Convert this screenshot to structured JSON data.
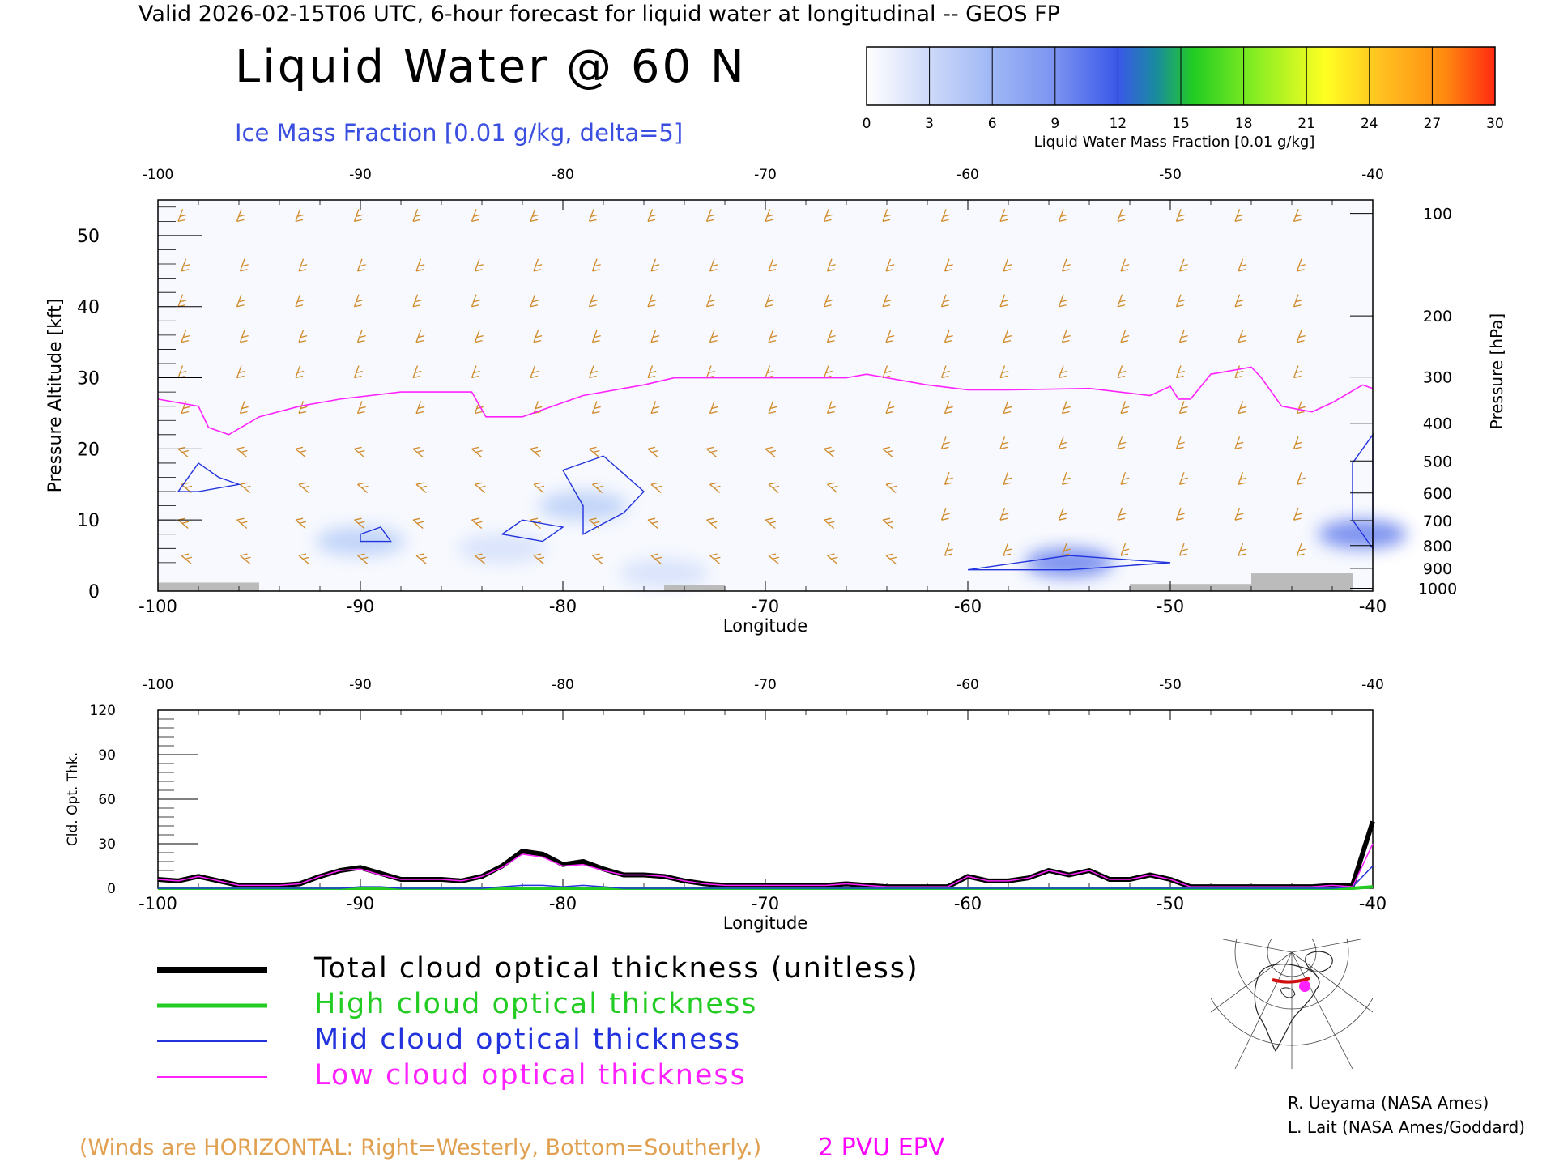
{
  "header": {
    "top_title": "Valid 2026-02-15T06 UTC, 6-hour forecast for liquid water at longitudinal -- GEOS FP",
    "main_title": "Liquid Water @ 60 N",
    "ice_note": "Ice Mass Fraction [0.01 g/kg, delta=5]"
  },
  "colorbar": {
    "ticks": [
      "0",
      "3",
      "6",
      "9",
      "12",
      "15",
      "18",
      "21",
      "24",
      "27",
      "30"
    ],
    "label": "Liquid Water Mass Fraction [0.01 g/kg]",
    "colors": [
      "#f2f5fd",
      "#bcd0f8",
      "#8fa9f3",
      "#6f87ee",
      "#3a55e6",
      "#1a8a9a",
      "#22cc22",
      "#88ee22",
      "#ffff22",
      "#ffc61e",
      "#ff8a10",
      "#ff3010"
    ]
  },
  "legend": {
    "total": "Total cloud optical thickness (unitless)",
    "high": "High cloud optical thickness",
    "mid": "Mid cloud optical thickness",
    "low": "Low cloud optical thickness",
    "total_color": "#000000",
    "high_color": "#22cc22",
    "mid_color": "#2233dd",
    "low_color": "#ff22ff"
  },
  "notes": {
    "winds": "(Winds are HORIZONTAL: Right=Westerly, Bottom=Southerly.)",
    "epv": "2 PVU EPV",
    "credit1": "R. Ueyama (NASA Ames)",
    "credit2": "L. Lait (NASA Ames/Goddard)"
  },
  "icons": {
    "map": "polar-locator-map-icon",
    "location_marker": "location-dot-icon"
  },
  "chart_data": [
    {
      "type": "heatmap",
      "title": "Liquid Water @ 60 N",
      "xlabel": "Longitude",
      "ylabel": "Pressure Altitude [kft]",
      "ylabel_right": "Pressure [hPa]",
      "xlim": [
        -100,
        -40
      ],
      "ylim": [
        0,
        55
      ],
      "x_ticks": [
        "-100",
        "-90",
        "-80",
        "-70",
        "-60",
        "-50",
        "-40"
      ],
      "y_ticks": [
        "0",
        "10",
        "20",
        "30",
        "40",
        "50"
      ],
      "right_ticks": [
        {
          "label": "100",
          "alt": 53.1
        },
        {
          "label": "200",
          "alt": 38.7
        },
        {
          "label": "300",
          "alt": 30.1
        },
        {
          "label": "400",
          "alt": 23.6
        },
        {
          "label": "500",
          "alt": 18.3
        },
        {
          "label": "600",
          "alt": 13.8
        },
        {
          "label": "700",
          "alt": 9.9
        },
        {
          "label": "800",
          "alt": 6.4
        },
        {
          "label": "900",
          "alt": 3.2
        },
        {
          "label": "1000",
          "alt": 0.4
        }
      ],
      "epv_2pvu_line": [
        [
          -100,
          27
        ],
        [
          -98,
          26
        ],
        [
          -97.5,
          23
        ],
        [
          -96.5,
          22
        ],
        [
          -95,
          24.5
        ],
        [
          -93,
          26
        ],
        [
          -91,
          27
        ],
        [
          -88,
          28
        ],
        [
          -86,
          28
        ],
        [
          -84.5,
          28
        ],
        [
          -83.8,
          24.5
        ],
        [
          -82,
          24.5
        ],
        [
          -80.5,
          26
        ],
        [
          -79,
          27.5
        ],
        [
          -76,
          29
        ],
        [
          -74.5,
          30
        ],
        [
          -70,
          30
        ],
        [
          -66,
          30
        ],
        [
          -65,
          30.5
        ],
        [
          -62,
          29
        ],
        [
          -60,
          28.3
        ],
        [
          -58,
          28.3
        ],
        [
          -54,
          28.5
        ],
        [
          -51,
          27.5
        ],
        [
          -50,
          28.8
        ],
        [
          -49.6,
          27
        ],
        [
          -49,
          27
        ],
        [
          -48,
          30.5
        ],
        [
          -46,
          31.5
        ],
        [
          -45.5,
          30
        ],
        [
          -44.5,
          26
        ],
        [
          -43,
          25.2
        ],
        [
          -42,
          26.5
        ],
        [
          -40.5,
          29
        ],
        [
          -40,
          28.5
        ]
      ],
      "liquid_water_patches": [
        {
          "lon": -90,
          "alt": 7,
          "value": 5
        },
        {
          "lon": -83,
          "alt": 6,
          "value": 4
        },
        {
          "lon": -79,
          "alt": 12,
          "value": 5
        },
        {
          "lon": -75,
          "alt": 2.5,
          "value": 3
        },
        {
          "lon": -55,
          "alt": 4,
          "value": 9
        },
        {
          "lon": -40.5,
          "alt": 8,
          "value": 12
        }
      ]
    },
    {
      "type": "line",
      "xlabel": "Longitude",
      "ylabel": "Cld. Opt. Thk.",
      "xlim": [
        -100,
        -40
      ],
      "ylim": [
        0,
        120
      ],
      "x_ticks": [
        "-100",
        "-90",
        "-80",
        "-70",
        "-60",
        "-50",
        "-40"
      ],
      "y_ticks": [
        "0",
        "30",
        "60",
        "90",
        "120"
      ],
      "x": [
        -100,
        -99,
        -98,
        -97,
        -96,
        -95,
        -94,
        -93,
        -92,
        -91,
        -90,
        -89,
        -88,
        -87,
        -86,
        -85,
        -84,
        -83,
        -82,
        -81,
        -80,
        -79,
        -78,
        -77,
        -76,
        -75,
        -74,
        -73,
        -72,
        -71,
        -70,
        -69,
        -68,
        -67,
        -66,
        -65,
        -64,
        -63,
        -62,
        -61,
        -60,
        -59,
        -58,
        -57,
        -56,
        -55,
        -54,
        -53,
        -52,
        -51,
        -50,
        -49,
        -48,
        -47,
        -46,
        -45,
        -44,
        -43,
        -42,
        -41,
        -40
      ],
      "series": [
        {
          "name": "Total cloud optical thickness (unitless)",
          "values": [
            6,
            5,
            8,
            5,
            2,
            2,
            2,
            3,
            8,
            12,
            14,
            10,
            6,
            6,
            6,
            5,
            8,
            15,
            25,
            23,
            16,
            18,
            13,
            9,
            9,
            8,
            5,
            3,
            2,
            2,
            2,
            2,
            2,
            2,
            3,
            2,
            1,
            1,
            1,
            1,
            8,
            5,
            5,
            7,
            12,
            9,
            12,
            6,
            6,
            9,
            6,
            1,
            1,
            1,
            1,
            1,
            1,
            1,
            2,
            2,
            45
          ]
        },
        {
          "name": "High cloud optical thickness",
          "values": [
            0,
            0,
            0,
            0,
            0,
            0,
            0,
            0,
            0,
            0,
            0,
            0,
            0,
            0,
            0,
            0,
            0,
            0,
            0,
            0,
            0,
            0,
            0,
            0,
            0,
            0,
            0,
            0,
            0,
            0,
            0,
            0,
            0,
            0,
            0,
            0,
            0,
            0,
            0,
            0,
            0,
            0,
            0,
            0,
            0,
            0,
            0,
            0,
            0,
            0,
            0,
            0,
            0,
            0,
            0,
            0,
            0,
            0,
            0,
            0,
            1
          ]
        },
        {
          "name": "Mid cloud optical thickness",
          "values": [
            0,
            0,
            0,
            0,
            0,
            0,
            0,
            0,
            0,
            0,
            1,
            1,
            0,
            0,
            0,
            0,
            0,
            1,
            2,
            2,
            1,
            2,
            1,
            0,
            0,
            0,
            0,
            0,
            0,
            0,
            0,
            0,
            0,
            0,
            0,
            0,
            0,
            0,
            0,
            0,
            0,
            0,
            0,
            0,
            0,
            0,
            0,
            0,
            0,
            0,
            0,
            0,
            0,
            0,
            0,
            0,
            0,
            0,
            0,
            1,
            15
          ]
        },
        {
          "name": "Low cloud optical thickness",
          "values": [
            6,
            5,
            8,
            5,
            2,
            2,
            2,
            3,
            8,
            12,
            13,
            9,
            6,
            6,
            6,
            5,
            8,
            14,
            23,
            21,
            15,
            16,
            12,
            9,
            9,
            8,
            5,
            3,
            2,
            2,
            2,
            2,
            2,
            2,
            3,
            2,
            1,
            1,
            1,
            1,
            8,
            5,
            5,
            7,
            12,
            9,
            12,
            6,
            6,
            9,
            6,
            1,
            1,
            1,
            1,
            1,
            1,
            1,
            2,
            1,
            30
          ]
        }
      ]
    }
  ]
}
